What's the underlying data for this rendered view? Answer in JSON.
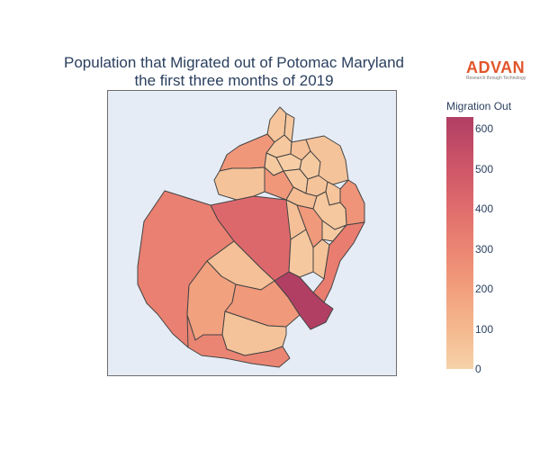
{
  "title": {
    "line1": "Population that Migrated out of Potomac Maryland",
    "line2": "the first three months of 2019"
  },
  "logo": {
    "name": "ADVAN",
    "tagline": "Research through Technology",
    "color": "#e2552c"
  },
  "colorbar": {
    "title": "Migration Out",
    "min": 0,
    "max": 630,
    "ticks": [
      0,
      100,
      200,
      300,
      400,
      500,
      600
    ],
    "colors": [
      "#f6d2a9",
      "#f5b78e",
      "#f19c7c",
      "#ea8171",
      "#dd686c",
      "#ca5268",
      "#b13f64"
    ]
  },
  "map": {
    "background": "#e5ecf6",
    "border_color": "#444444",
    "regions": [
      {
        "id": "n1",
        "value": 50
      },
      {
        "id": "n2",
        "value": 40
      },
      {
        "id": "nw1",
        "value": 230
      },
      {
        "id": "nw2",
        "value": 60
      },
      {
        "id": "nc1",
        "value": 40
      },
      {
        "id": "nc2",
        "value": 70
      },
      {
        "id": "nc3",
        "value": 30
      },
      {
        "id": "ne1",
        "value": 60
      },
      {
        "id": "ne2",
        "value": 30
      },
      {
        "id": "ne3",
        "value": 20
      },
      {
        "id": "c1",
        "value": 230
      },
      {
        "id": "c2",
        "value": 40
      },
      {
        "id": "c3",
        "value": 60
      },
      {
        "id": "c4",
        "value": 50
      },
      {
        "id": "c5",
        "value": 80
      },
      {
        "id": "c6",
        "value": 240
      },
      {
        "id": "c7",
        "value": 40
      },
      {
        "id": "e1",
        "value": 220
      },
      {
        "id": "e2",
        "value": 30
      },
      {
        "id": "mid1",
        "value": 420
      },
      {
        "id": "mid2",
        "value": 40
      },
      {
        "id": "mid3",
        "value": 60
      },
      {
        "id": "mid4",
        "value": 70
      },
      {
        "id": "se1",
        "value": 330
      },
      {
        "id": "w1",
        "value": 320
      },
      {
        "id": "s1",
        "value": 70
      },
      {
        "id": "s2",
        "value": 190
      },
      {
        "id": "s3",
        "value": 220
      },
      {
        "id": "s4",
        "value": 60
      },
      {
        "id": "s5",
        "value": 630
      },
      {
        "id": "sw1",
        "value": 300
      }
    ]
  }
}
